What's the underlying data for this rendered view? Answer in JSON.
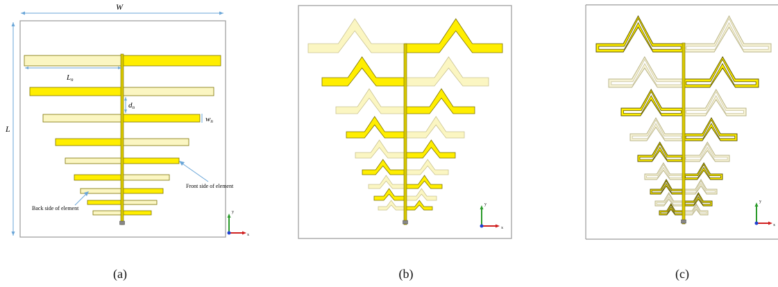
{
  "figure": {
    "panels": [
      {
        "caption": "(a)"
      },
      {
        "caption": "(b)"
      },
      {
        "caption": "(c)"
      }
    ],
    "panel_a": {
      "label_W": "W",
      "label_L": "L",
      "label_Ln": "L",
      "label_Ln_sub": "n",
      "label_dn": "d",
      "label_dn_sub": "n",
      "label_wn": "w",
      "label_wn_sub": "n",
      "label_front": "Front side of element",
      "label_back": "Back side of element"
    },
    "axes_triad": {
      "y_label": "y",
      "x_label": "x"
    },
    "colors": {
      "front_fill": "#ffee00",
      "back_fill": "#fbf6c2",
      "outline": "#7a7000",
      "boom": "#d8c800",
      "dim_line": "#6aa6d8",
      "frame": "#9a9a9a",
      "axis_y": "#2a9a2a",
      "axis_x": "#d02020",
      "axis_z": "#2040d0"
    }
  }
}
